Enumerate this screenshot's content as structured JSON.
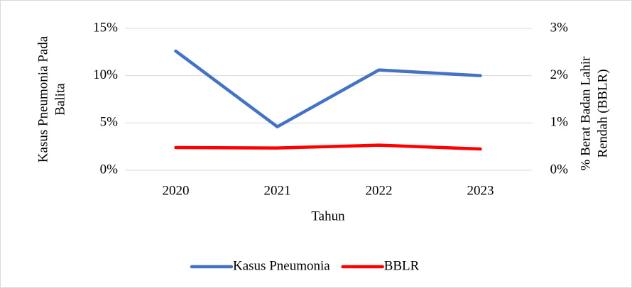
{
  "chart_data": {
    "type": "line",
    "categories": [
      "2020",
      "2021",
      "2022",
      "2023"
    ],
    "series": [
      {
        "name": "Kasus Pneumonia",
        "color": "#4472c4",
        "values": [
          12.6,
          4.6,
          10.6,
          10.0
        ]
      },
      {
        "name": "BBLR",
        "color": "#ff0000",
        "axis": "y2",
        "values": [
          0.48,
          0.47,
          0.53,
          0.45
        ]
      }
    ],
    "ylim": [
      0,
      15
    ],
    "yticks": [
      {
        "value": 0,
        "label": "0%"
      },
      {
        "value": 5,
        "label": "5%"
      },
      {
        "value": 10,
        "label": "10%"
      },
      {
        "value": 15,
        "label": "15%"
      }
    ],
    "y2lim": [
      0,
      3
    ],
    "y2ticks": [
      {
        "value": 0,
        "label": "0%"
      },
      {
        "value": 1,
        "label": "1%"
      },
      {
        "value": 2,
        "label": "2%"
      },
      {
        "value": 3,
        "label": "3%"
      }
    ],
    "xlabel": "Tahun",
    "ylabel": [
      "Kasus Pneumonia Pada",
      "Balita"
    ],
    "y2label": [
      "% Berat Badan Lahir",
      "Rendah (BBLR)"
    ],
    "legend": "bottom"
  }
}
